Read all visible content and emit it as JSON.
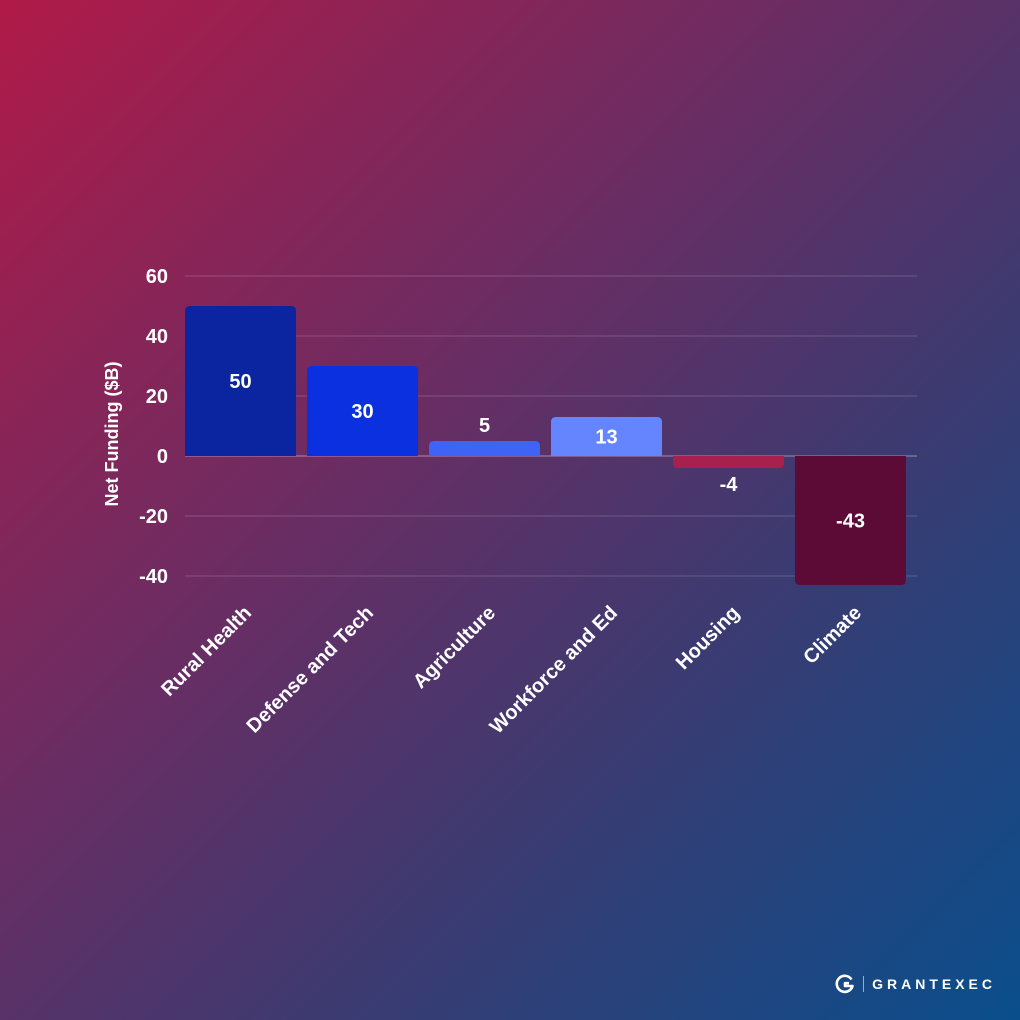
{
  "chart_data": {
    "type": "bar",
    "categories": [
      "Rural Health",
      "Defense and Tech",
      "Agriculture",
      "Workforce and Ed",
      "Housing",
      "Climate"
    ],
    "values": [
      50,
      30,
      5,
      13,
      -4,
      -43
    ],
    "data_labels": [
      "50",
      "30",
      "5",
      "13",
      "-4",
      "-43"
    ],
    "bar_colors": [
      "#0b24a0",
      "#0a30e0",
      "#3e63f5",
      "#6485ff",
      "#a8214e",
      "#5c0b36"
    ],
    "ylabel": "Net Funding ($B)",
    "xlabel": "",
    "ylim": [
      -40,
      60
    ],
    "yticks": [
      60,
      40,
      20,
      0,
      -20,
      -40
    ],
    "ytick_labels": [
      "60",
      "40",
      "20",
      "0",
      "-20",
      "-40"
    ],
    "grid": true,
    "legend": "none"
  },
  "brand": {
    "name": "GRANTEXEC",
    "logo_icon": "grantexec-g-logo-icon",
    "color": "#ffffff"
  }
}
